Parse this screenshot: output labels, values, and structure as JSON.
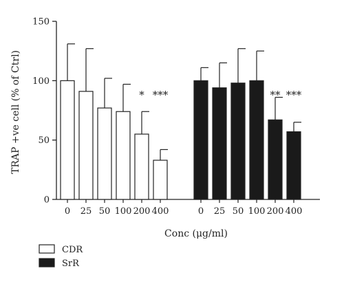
{
  "chart_data": {
    "type": "bar",
    "ylabel": "TRAP +ve cell (% of Ctrl)",
    "xlabel": "Conc (μg/ml)",
    "ylim": [
      0,
      150
    ],
    "yticks": [
      0,
      50,
      100,
      150
    ],
    "grid": false,
    "legend_position": "bottom-left",
    "groups": [
      {
        "name": "CDR",
        "fill": "#ffffff",
        "categories": [
          "0",
          "25",
          "50",
          "100",
          "200",
          "400"
        ],
        "values": [
          100,
          91,
          77,
          74,
          55,
          33
        ],
        "error_upper": [
          131,
          127,
          102,
          97,
          74,
          42
        ],
        "significance": [
          "",
          "",
          "",
          "",
          "*",
          "***"
        ]
      },
      {
        "name": "SrR",
        "fill": "#1a1a1a",
        "categories": [
          "0",
          "25",
          "50",
          "100",
          "200",
          "400"
        ],
        "values": [
          100,
          94,
          98,
          100,
          67,
          57
        ],
        "error_upper": [
          111,
          115,
          127,
          125,
          86,
          65
        ],
        "significance": [
          "",
          "",
          "",
          "",
          "**",
          "***"
        ]
      }
    ],
    "legend": [
      {
        "label": "CDR",
        "fill": "#ffffff"
      },
      {
        "label": "SrR",
        "fill": "#1a1a1a"
      }
    ]
  }
}
